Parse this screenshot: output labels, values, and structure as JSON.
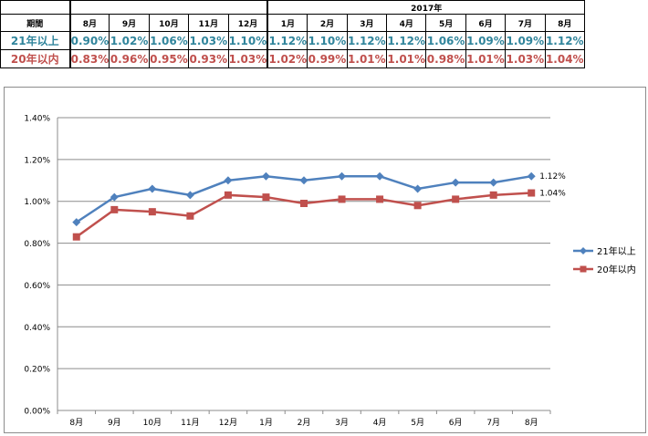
{
  "table": {
    "period_label": "期間",
    "year_label": "2017年",
    "months": [
      "8月",
      "9月",
      "10月",
      "11月",
      "12月",
      "1月",
      "2月",
      "3月",
      "4月",
      "5月",
      "6月",
      "7月",
      "8月"
    ],
    "rows": [
      {
        "label": "21年以上",
        "values": [
          "0.90%",
          "1.02%",
          "1.06%",
          "1.03%",
          "1.10%",
          "1.12%",
          "1.10%",
          "1.12%",
          "1.12%",
          "1.06%",
          "1.09%",
          "1.09%",
          "1.12%"
        ],
        "color": "#31859c"
      },
      {
        "label": "20年以内",
        "values": [
          "0.83%",
          "0.96%",
          "0.95%",
          "0.93%",
          "1.03%",
          "1.02%",
          "0.99%",
          "1.01%",
          "1.01%",
          "0.98%",
          "1.01%",
          "1.03%",
          "1.04%"
        ],
        "color": "#c0504d"
      }
    ]
  },
  "chart_data": {
    "type": "line",
    "categories": [
      "8月",
      "9月",
      "10月",
      "11月",
      "12月",
      "1月",
      "2月",
      "3月",
      "4月",
      "5月",
      "6月",
      "7月",
      "8月"
    ],
    "series": [
      {
        "name": "21年以上",
        "color": "#4f81bd",
        "marker": "diamond",
        "values": [
          0.9,
          1.02,
          1.06,
          1.03,
          1.1,
          1.12,
          1.1,
          1.12,
          1.12,
          1.06,
          1.09,
          1.09,
          1.12
        ],
        "end_label": "1.12%"
      },
      {
        "name": "20年以内",
        "color": "#c0504d",
        "marker": "square",
        "values": [
          0.83,
          0.96,
          0.95,
          0.93,
          1.03,
          1.02,
          0.99,
          1.01,
          1.01,
          0.98,
          1.01,
          1.03,
          1.04
        ],
        "end_label": "1.04%"
      }
    ],
    "yticks": [
      "0.00%",
      "0.20%",
      "0.40%",
      "0.60%",
      "0.80%",
      "1.00%",
      "1.20%",
      "1.40%"
    ],
    "ylim": [
      0,
      1.4
    ],
    "grid": true,
    "legend_position": "right"
  }
}
